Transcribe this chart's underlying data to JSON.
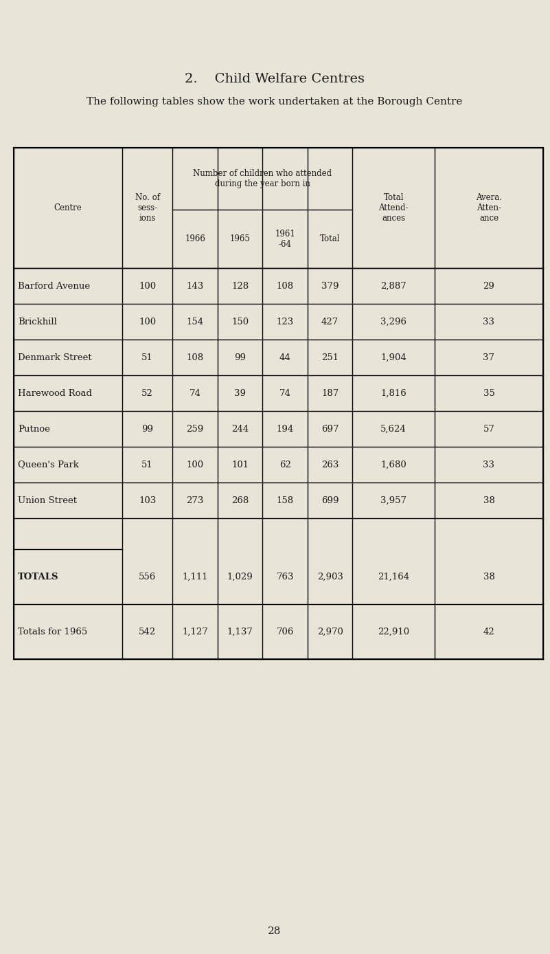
{
  "title_number": "2.",
  "title_text": "Child Welfare Centres",
  "subtitle": "The following tables show the work undertaken at the Borough Centre",
  "page_number": "28",
  "bg_color": "#e8e4d8",
  "data_rows": [
    [
      "Barford Avenue",
      "100",
      "143",
      "128",
      "108",
      "379",
      "2,887",
      "29"
    ],
    [
      "Brickhill",
      "100",
      "154",
      "150",
      "123",
      "427",
      "3,296",
      "33"
    ],
    [
      "Denmark Street",
      "51",
      "108",
      "99",
      "44",
      "251",
      "1,904",
      "37"
    ],
    [
      "Harewood Road",
      "52",
      "74",
      "39",
      "74",
      "187",
      "1,816",
      "35"
    ],
    [
      "Putnoe",
      "99",
      "259",
      "244",
      "194",
      "697",
      "5,624",
      "57"
    ],
    [
      "Queen's Park",
      "51",
      "100",
      "101",
      "62",
      "263",
      "1,680",
      "33"
    ],
    [
      "Union Street",
      "103",
      "273",
      "268",
      "158",
      "699",
      "3,957",
      "38"
    ]
  ],
  "totals_row": [
    "TOTALS",
    "556",
    "1,111",
    "1,029",
    "763",
    "2,903",
    "21,164",
    "38"
  ],
  "totals_1965_row": [
    "Totals for 1965",
    "542",
    "1,127",
    "1,137",
    "706",
    "2,970",
    "22,910",
    "42"
  ],
  "font_color": "#1a1a1a",
  "line_color": "#000000"
}
